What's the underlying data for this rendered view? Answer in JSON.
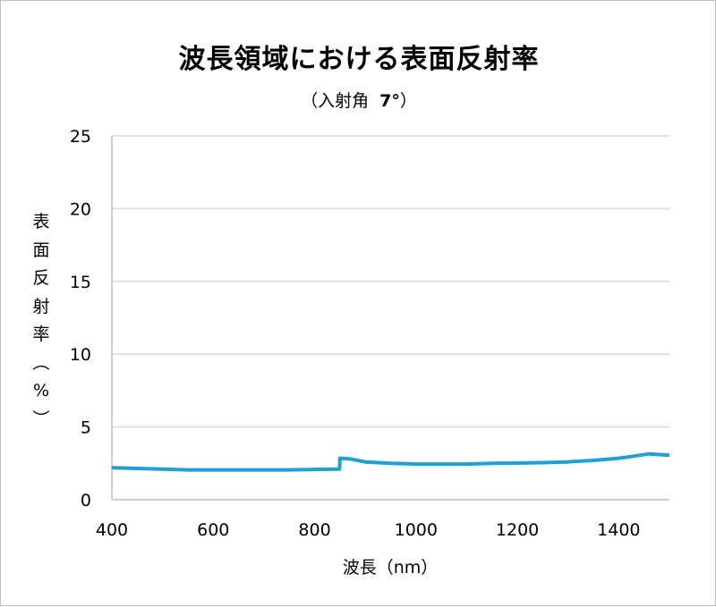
{
  "chart": {
    "title": "波長領域における表面反射率",
    "subtitle_prefix": "（入射角",
    "subtitle_value": "7°",
    "subtitle_suffix": "）",
    "ylabel_chars": [
      "表",
      "面",
      "反",
      "射",
      "率",
      "︵",
      "%",
      "︶"
    ],
    "xlabel": "波長（nm）",
    "line_color": "#1fa1d6",
    "grid_color": "#d9d9d9"
  },
  "chart_data": {
    "type": "line",
    "title": "波長領域における表面反射率",
    "subtitle": "（入射角 7°）",
    "xlabel": "波長（nm）",
    "ylabel": "表面反射率（%）",
    "xlim": [
      400,
      1500
    ],
    "ylim": [
      0,
      25
    ],
    "xticks": [
      400,
      600,
      800,
      1000,
      1200,
      1400
    ],
    "yticks": [
      0,
      5,
      10,
      15,
      20,
      25
    ],
    "grid": true,
    "legend": "none",
    "series": [
      {
        "name": "表面反射率",
        "x": [
          400,
          450,
          500,
          550,
          600,
          650,
          700,
          750,
          800,
          849,
          850,
          870,
          900,
          950,
          1000,
          1050,
          1100,
          1150,
          1200,
          1250,
          1300,
          1350,
          1400,
          1430,
          1460,
          1480,
          1500
        ],
        "y": [
          2.2,
          2.15,
          2.1,
          2.05,
          2.05,
          2.05,
          2.05,
          2.05,
          2.08,
          2.1,
          2.85,
          2.8,
          2.6,
          2.5,
          2.45,
          2.45,
          2.45,
          2.5,
          2.52,
          2.55,
          2.6,
          2.7,
          2.85,
          3.0,
          3.15,
          3.1,
          3.05
        ]
      }
    ]
  }
}
